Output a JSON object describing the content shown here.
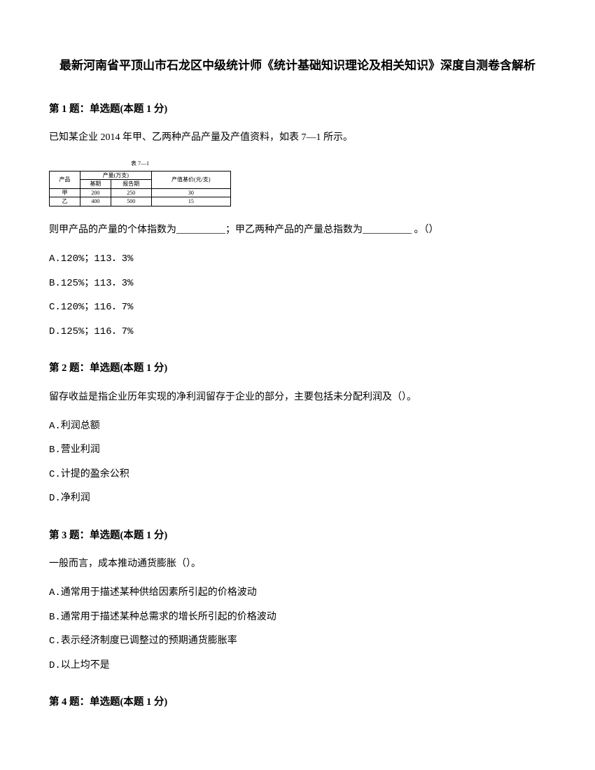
{
  "title": "最新河南省平顶山市石龙区中级统计师《统计基础知识理论及相关知识》深度自测卷含解析",
  "q1": {
    "header": "第 1 题：单选题(本题 1 分)",
    "text1": "已知某企业 2014 年甲、乙两种产品产量及产值资料，如表 7—1 所示。",
    "table_caption": "表 7—1",
    "table_header_main": "产品",
    "table_header_group": "产量(万支)",
    "table_header_sub1": "基期",
    "table_header_sub2": "报告期",
    "table_header_col3": "产值基价(元/支)",
    "row1": {
      "c1": "甲",
      "c2": "200",
      "c3": "250",
      "c4": "30"
    },
    "row2": {
      "c1": "乙",
      "c2": "400",
      "c3": "500",
      "c4": "15"
    },
    "text2": "则甲产品的产量的个体指数为__________；甲乙两种产品的产量总指数为__________ 。（）",
    "optA": "A.120%；113．3%",
    "optB": "B.125%；113．3%",
    "optC": "C.120%；116．7%",
    "optD": "D.125%；116．7%"
  },
  "q2": {
    "header": "第 2 题：单选题(本题 1 分)",
    "text": "留存收益是指企业历年实现的净利润留存于企业的部分，主要包括未分配利润及（）。",
    "optA": "A.利润总额",
    "optB": "B.营业利润",
    "optC": "C.计提的盈余公积",
    "optD": "D.净利润"
  },
  "q3": {
    "header": "第 3 题：单选题(本题 1 分)",
    "text": "一般而言，成本推动通货膨胀（）。",
    "optA": "A.通常用于描述某种供给因素所引起的价格波动",
    "optB": "B.通常用于描述某种总需求的增长所引起的价格波动",
    "optC": "C.表示经济制度已调整过的预期通货膨胀率",
    "optD": "D.以上均不是"
  },
  "q4": {
    "header": "第 4 题：单选题(本题 1 分)"
  }
}
